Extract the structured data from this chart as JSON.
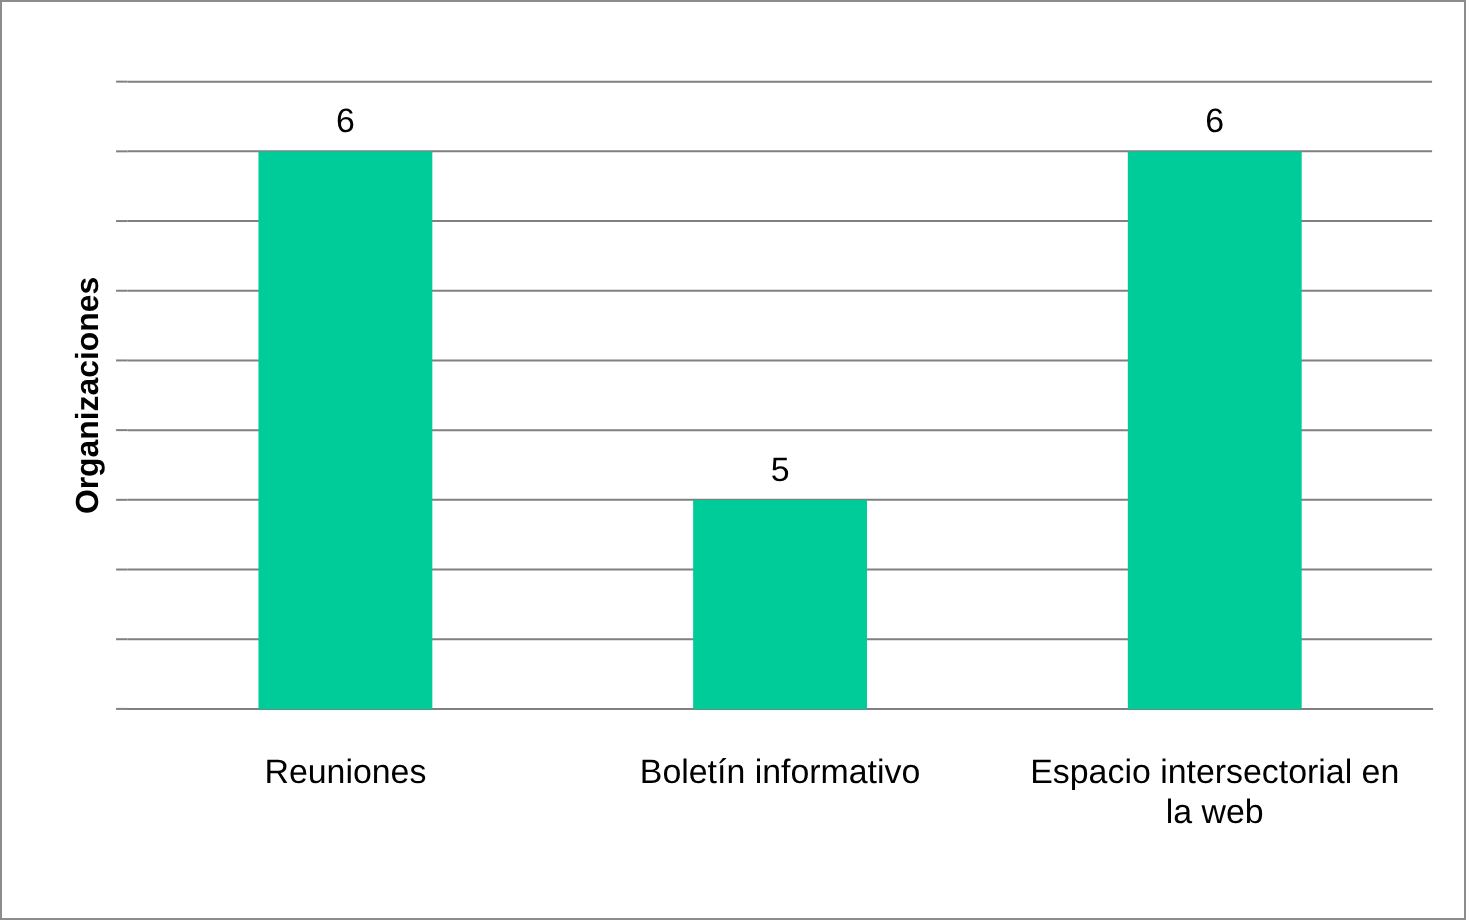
{
  "chart_data": {
    "type": "bar",
    "ylabel": "Organizaciones",
    "categories": [
      "Reuniones",
      "Boletín informativo",
      "Espacio intersectorial en la web"
    ],
    "values": [
      6,
      5,
      6
    ],
    "color": "#00cc99",
    "ylim": [
      4.4,
      6.2
    ],
    "yticks": [
      {
        "value": 4.4,
        "label": null
      },
      {
        "value": 4.6,
        "label": null
      },
      {
        "value": 4.8,
        "label": null
      },
      {
        "value": 5,
        "label": null
      },
      {
        "value": 5.2,
        "label": null
      },
      {
        "value": 5.4,
        "label": null
      },
      {
        "value": 5.6,
        "label": null
      },
      {
        "value": 5.8,
        "label": null
      },
      {
        "value": 6,
        "label": null
      },
      {
        "value": 6.2,
        "label": null
      }
    ],
    "grid": "y",
    "tick_labels": "x",
    "data_labels": true
  }
}
